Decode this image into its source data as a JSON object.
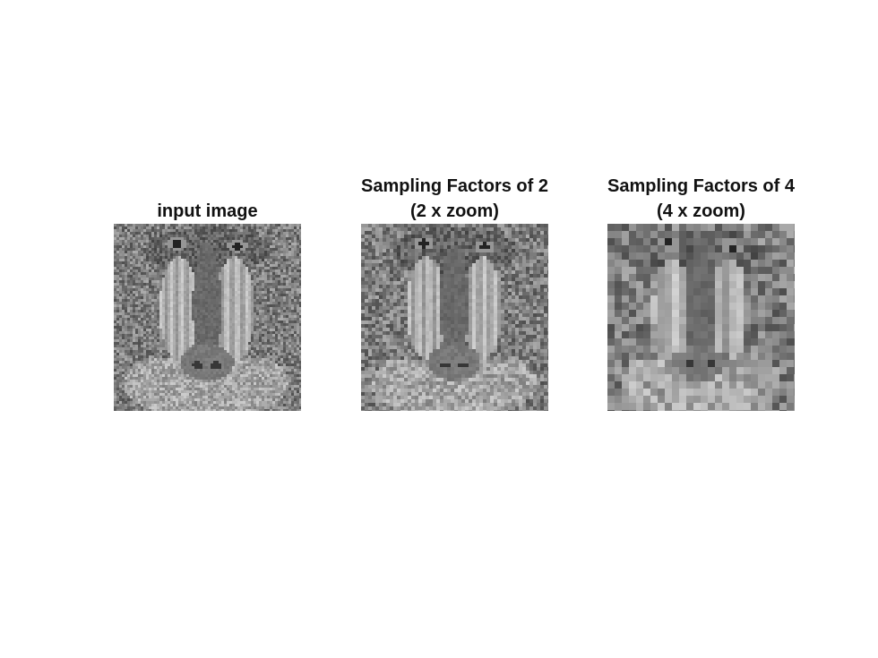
{
  "figure": {
    "panels": [
      {
        "id": "input",
        "title_lines": [
          "input image"
        ],
        "image_subject": "baboon-face-grayscale",
        "block_size": 1
      },
      {
        "id": "factor-2",
        "title_lines": [
          "Sampling Factors of 2",
          "(2 x zoom)"
        ],
        "image_subject": "baboon-face-grayscale-downsampled-2",
        "block_size": 2
      },
      {
        "id": "factor-4",
        "title_lines": [
          "Sampling Factors of 4",
          "(4 x zoom)"
        ],
        "image_subject": "baboon-face-grayscale-downsampled-4",
        "block_size": 4
      }
    ],
    "colors": {
      "background": "#ffffff",
      "text": "#111111",
      "fur_base": "#8a8a8a",
      "nose": "#6e6e6e",
      "cheek": "#c4c4c4",
      "eye": "#2a2a2a"
    }
  }
}
